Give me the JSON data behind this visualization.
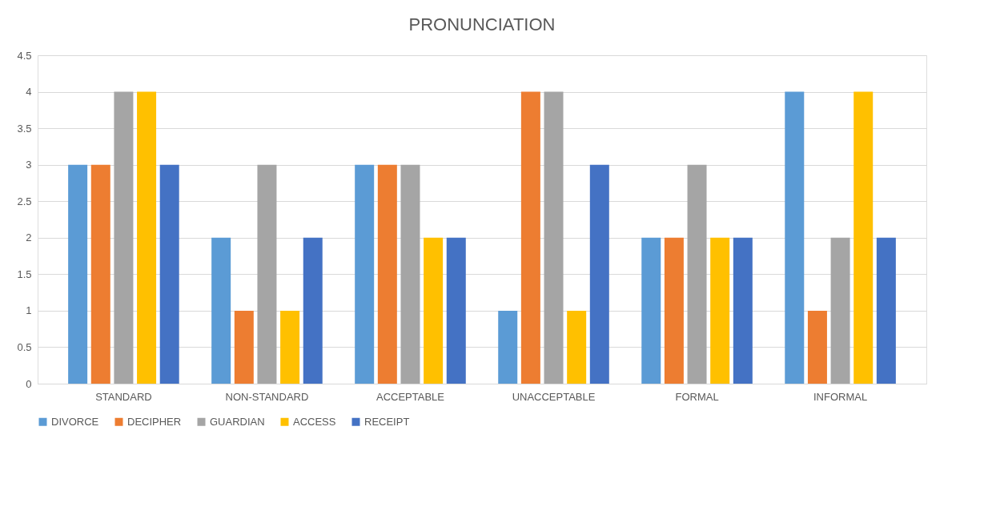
{
  "chart_data": {
    "type": "bar",
    "title": "PRONUNCIATION",
    "categories": [
      "STANDARD",
      "NON-STANDARD",
      "ACCEPTABLE",
      "UNACCEPTABLE",
      "FORMAL",
      "INFORMAL"
    ],
    "series": [
      {
        "name": "DIVORCE",
        "color": "#5b9bd5",
        "values": [
          3,
          2,
          3,
          1,
          2,
          4
        ]
      },
      {
        "name": "DECIPHER",
        "color": "#ed7d31",
        "values": [
          3,
          1,
          3,
          4,
          2,
          1
        ]
      },
      {
        "name": "GUARDIAN",
        "color": "#a5a5a5",
        "values": [
          4,
          3,
          3,
          4,
          3,
          2
        ]
      },
      {
        "name": "ACCESS",
        "color": "#ffc000",
        "values": [
          4,
          1,
          2,
          1,
          2,
          4
        ]
      },
      {
        "name": "RECEIPT",
        "color": "#4472c4",
        "values": [
          3,
          2,
          2,
          3,
          2,
          2
        ]
      }
    ],
    "ylim": [
      0,
      4.5
    ],
    "yticks": [
      0,
      0.5,
      1,
      1.5,
      2,
      2.5,
      3,
      3.5,
      4,
      4.5
    ],
    "grid": "y",
    "legend": "bottom"
  }
}
